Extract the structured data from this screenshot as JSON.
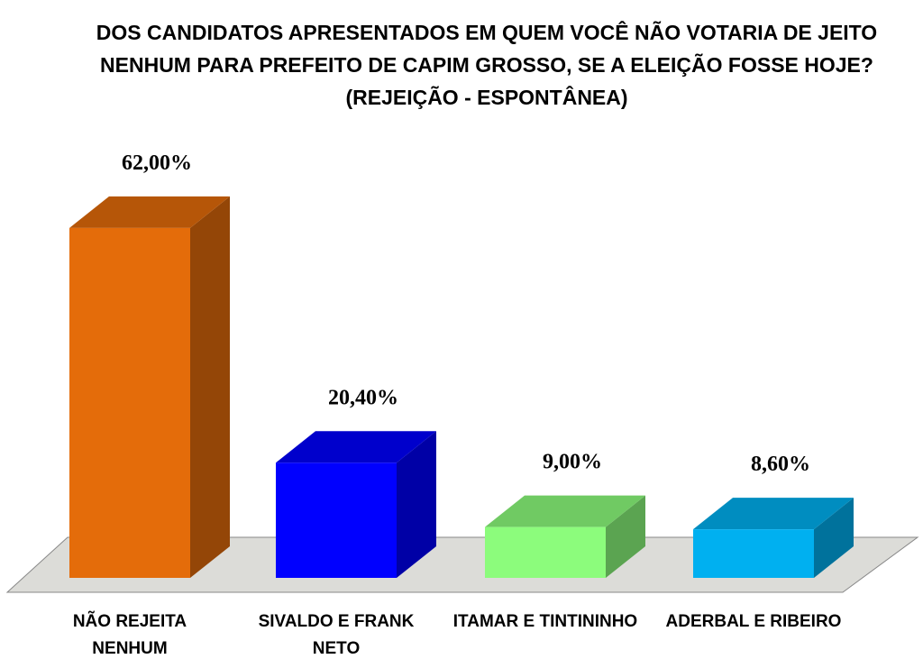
{
  "chart_data": {
    "type": "bar3d",
    "title": "DOS CANDIDATOS APRESENTADOS EM QUEM VOCÊ NÃO VOTARIA DE JEITO NENHUM  PARA PREFEITO DE CAPIM GROSSO, SE A ELEIÇÃO FOSSE HOJE? (REJEIÇÃO - ESPONTÂNEA)",
    "categories": [
      "NÃO REJEITA NENHUM",
      "SIVALDO E FRANK NETO",
      "ITAMAR E TINTININHO",
      "ADERBAL E RIBEIRO"
    ],
    "values": [
      62,
      20.4,
      9,
      8.6
    ],
    "value_labels": [
      "62,00%",
      "20,40%",
      "9,00%",
      "8,60%"
    ],
    "colors": [
      "#e46c0a",
      "#0000ff",
      "#8cfc7c",
      "#00b0f0"
    ]
  }
}
